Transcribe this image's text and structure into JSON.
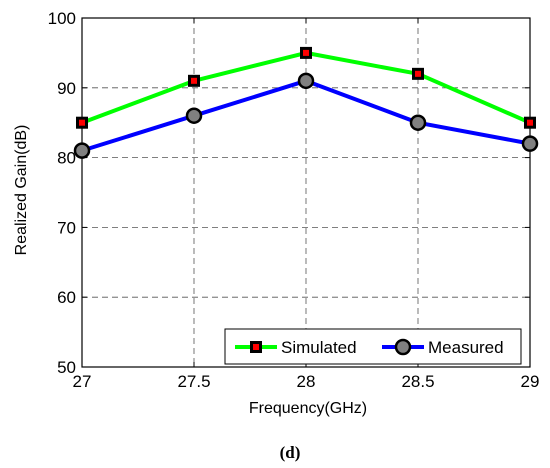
{
  "chart_data": {
    "type": "line",
    "x": [
      27,
      27.5,
      28,
      28.5,
      29
    ],
    "x_ticks": [
      "27",
      "27.5",
      "28",
      "28.5",
      "29"
    ],
    "y_ticks": [
      "50",
      "60",
      "70",
      "80",
      "90",
      "100"
    ],
    "xlim": [
      27,
      29
    ],
    "ylim": [
      50,
      100
    ],
    "xlabel": "Frequency(GHz)",
    "ylabel": "Realized Gain(dB)",
    "grid": true,
    "legend_position": "bottom-right",
    "series": [
      {
        "name": "Simulated",
        "values": [
          85,
          91,
          95,
          92,
          85
        ],
        "color": "#00ff00",
        "marker": "square",
        "marker_color": "#ff0000"
      },
      {
        "name": "Measured",
        "values": [
          81,
          86,
          91,
          85,
          82
        ],
        "color": "#0000ff",
        "marker": "circle",
        "marker_color": "#808080"
      }
    ]
  },
  "panel_label": "(d)"
}
